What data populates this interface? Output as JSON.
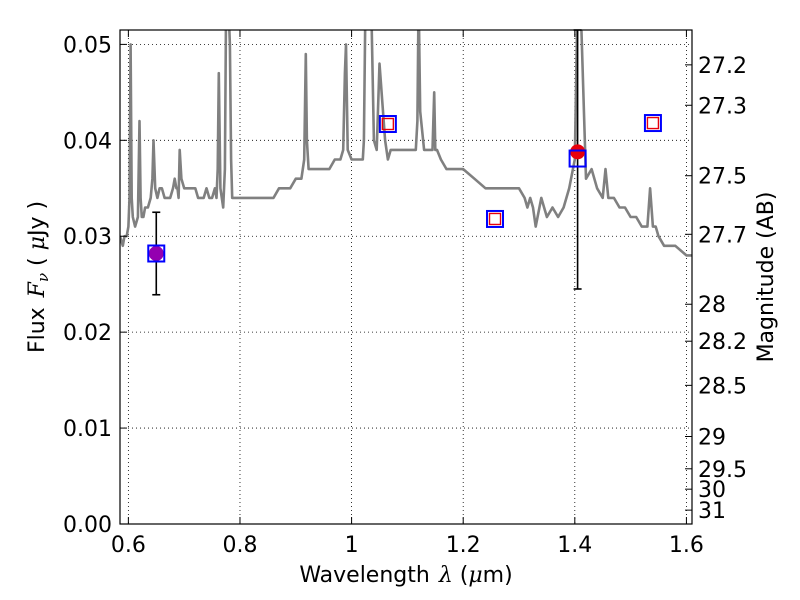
{
  "chart_data": {
    "type": "line",
    "x_label": {
      "prefix": "Wavelength",
      "symbol": "λ",
      "units_open": " (",
      "units_symbol": "μ",
      "units_close": "m)"
    },
    "y_label": {
      "prefix": "Flux",
      "symbol": "F",
      "subscript": "ν",
      "units_open": " ( ",
      "units_symbol": "μ",
      "units_close": "Jy )"
    },
    "y2_label": "Magnitude (AB)",
    "xlim": [
      0.585,
      1.61
    ],
    "ylim": [
      0.0,
      0.0515
    ],
    "x_ticks": [
      0.6,
      0.8,
      1.0,
      1.2,
      1.4,
      1.6
    ],
    "x_tick_labels": [
      "0.6",
      "0.8",
      "1",
      "1.2",
      "1.4",
      "1.6"
    ],
    "y_ticks": [
      0.0,
      0.01,
      0.02,
      0.03,
      0.04,
      0.05
    ],
    "y_tick_labels": [
      "0.00",
      "0.01",
      "0.02",
      "0.03",
      "0.04",
      "0.05"
    ],
    "mag_ticks": [
      27.2,
      27.3,
      27.5,
      27.7,
      28,
      28.2,
      28.5,
      29,
      29.5,
      30,
      31
    ],
    "mag_tick_labels": [
      "27.2",
      "27.3",
      "27.5",
      "27.7",
      "28",
      "28.2",
      "28.5",
      "29",
      "29.5",
      "30",
      "31"
    ],
    "grid": true,
    "grid_style": "dotted",
    "series": [
      {
        "kind": "line",
        "color": "#808080",
        "x": [
          0.585,
          0.59,
          0.593,
          0.597,
          0.6,
          0.602,
          0.604,
          0.606,
          0.608,
          0.612,
          0.617,
          0.62,
          0.622,
          0.624,
          0.627,
          0.63,
          0.635,
          0.64,
          0.643,
          0.645,
          0.648,
          0.652,
          0.656,
          0.66,
          0.665,
          0.67,
          0.675,
          0.68,
          0.683,
          0.686,
          0.688,
          0.69,
          0.692,
          0.695,
          0.7,
          0.705,
          0.71,
          0.715,
          0.72,
          0.725,
          0.73,
          0.735,
          0.74,
          0.745,
          0.75,
          0.755,
          0.758,
          0.76,
          0.762,
          0.765,
          0.77,
          0.773,
          0.775,
          0.778,
          0.78,
          0.782,
          0.784,
          0.786,
          0.79,
          0.8,
          0.81,
          0.82,
          0.83,
          0.84,
          0.85,
          0.86,
          0.87,
          0.88,
          0.89,
          0.9,
          0.91,
          0.915,
          0.918,
          0.92,
          0.923,
          0.93,
          0.94,
          0.95,
          0.96,
          0.97,
          0.98,
          0.985,
          0.988,
          0.99,
          0.993,
          1.0,
          1.01,
          1.02,
          1.022,
          1.025,
          1.03,
          1.035,
          1.04,
          1.045,
          1.05,
          1.055,
          1.06,
          1.065,
          1.07,
          1.08,
          1.09,
          1.1,
          1.11,
          1.115,
          1.118,
          1.12,
          1.123,
          1.13,
          1.14,
          1.145,
          1.148,
          1.15,
          1.153,
          1.16,
          1.17,
          1.18,
          1.2,
          1.22,
          1.24,
          1.26,
          1.28,
          1.3,
          1.31,
          1.315,
          1.32,
          1.325,
          1.33,
          1.34,
          1.345,
          1.35,
          1.36,
          1.37,
          1.38,
          1.39,
          1.4,
          1.405,
          1.41,
          1.42,
          1.43,
          1.44,
          1.45,
          1.455,
          1.46,
          1.47,
          1.48,
          1.49,
          1.5,
          1.51,
          1.52,
          1.53,
          1.535,
          1.54,
          1.545,
          1.55,
          1.56,
          1.58,
          1.6,
          1.61
        ],
        "y": [
          0.03,
          0.029,
          0.03,
          0.03,
          0.031,
          0.034,
          0.05,
          0.034,
          0.032,
          0.031,
          0.032,
          0.042,
          0.034,
          0.032,
          0.032,
          0.033,
          0.033,
          0.034,
          0.036,
          0.04,
          0.035,
          0.034,
          0.035,
          0.035,
          0.034,
          0.034,
          0.034,
          0.035,
          0.036,
          0.035,
          0.035,
          0.034,
          0.039,
          0.036,
          0.035,
          0.035,
          0.035,
          0.035,
          0.035,
          0.034,
          0.034,
          0.034,
          0.035,
          0.034,
          0.034,
          0.035,
          0.034,
          0.037,
          0.047,
          0.035,
          0.033,
          0.037,
          0.053,
          0.054,
          0.053,
          0.05,
          0.038,
          0.034,
          0.034,
          0.034,
          0.034,
          0.034,
          0.034,
          0.034,
          0.034,
          0.034,
          0.035,
          0.035,
          0.035,
          0.036,
          0.036,
          0.038,
          0.049,
          0.04,
          0.037,
          0.037,
          0.037,
          0.037,
          0.037,
          0.038,
          0.038,
          0.039,
          0.047,
          0.05,
          0.039,
          0.038,
          0.038,
          0.038,
          0.04,
          0.055,
          0.055,
          0.055,
          0.04,
          0.039,
          0.048,
          0.044,
          0.04,
          0.038,
          0.039,
          0.039,
          0.039,
          0.039,
          0.039,
          0.039,
          0.042,
          0.055,
          0.043,
          0.039,
          0.039,
          0.039,
          0.045,
          0.039,
          0.039,
          0.038,
          0.037,
          0.037,
          0.037,
          0.036,
          0.035,
          0.035,
          0.035,
          0.035,
          0.034,
          0.033,
          0.034,
          0.033,
          0.031,
          0.034,
          0.033,
          0.032,
          0.033,
          0.032,
          0.033,
          0.035,
          0.038,
          0.055,
          0.055,
          0.036,
          0.037,
          0.035,
          0.034,
          0.037,
          0.034,
          0.034,
          0.033,
          0.033,
          0.032,
          0.032,
          0.031,
          0.031,
          0.035,
          0.031,
          0.031,
          0.03,
          0.029,
          0.029,
          0.028,
          0.028
        ]
      },
      {
        "kind": "markers",
        "marker": "circle",
        "color": "#e8000b",
        "points": [
          {
            "x": 0.65,
            "y": 0.0282,
            "yerr_low": 0.0239,
            "yerr_high": 0.0325,
            "fill": "#9400b0"
          },
          {
            "x": 1.405,
            "y": 0.0388,
            "yerr_low": 0.0245,
            "yerr_high": 0.0515,
            "fill": "#e8000b"
          }
        ]
      },
      {
        "kind": "markers",
        "marker": "square-outer",
        "color": "#0000ff",
        "points": [
          {
            "x": 0.65,
            "y": 0.0282
          },
          {
            "x": 1.065,
            "y": 0.0417
          },
          {
            "x": 1.257,
            "y": 0.0318
          },
          {
            "x": 1.405,
            "y": 0.0381
          },
          {
            "x": 1.54,
            "y": 0.0418
          }
        ]
      },
      {
        "kind": "markers",
        "marker": "square-inner",
        "color": "#e8000b",
        "points": [
          {
            "x": 1.065,
            "y": 0.0417
          },
          {
            "x": 1.257,
            "y": 0.0318
          },
          {
            "x": 1.54,
            "y": 0.0418
          }
        ]
      }
    ]
  }
}
